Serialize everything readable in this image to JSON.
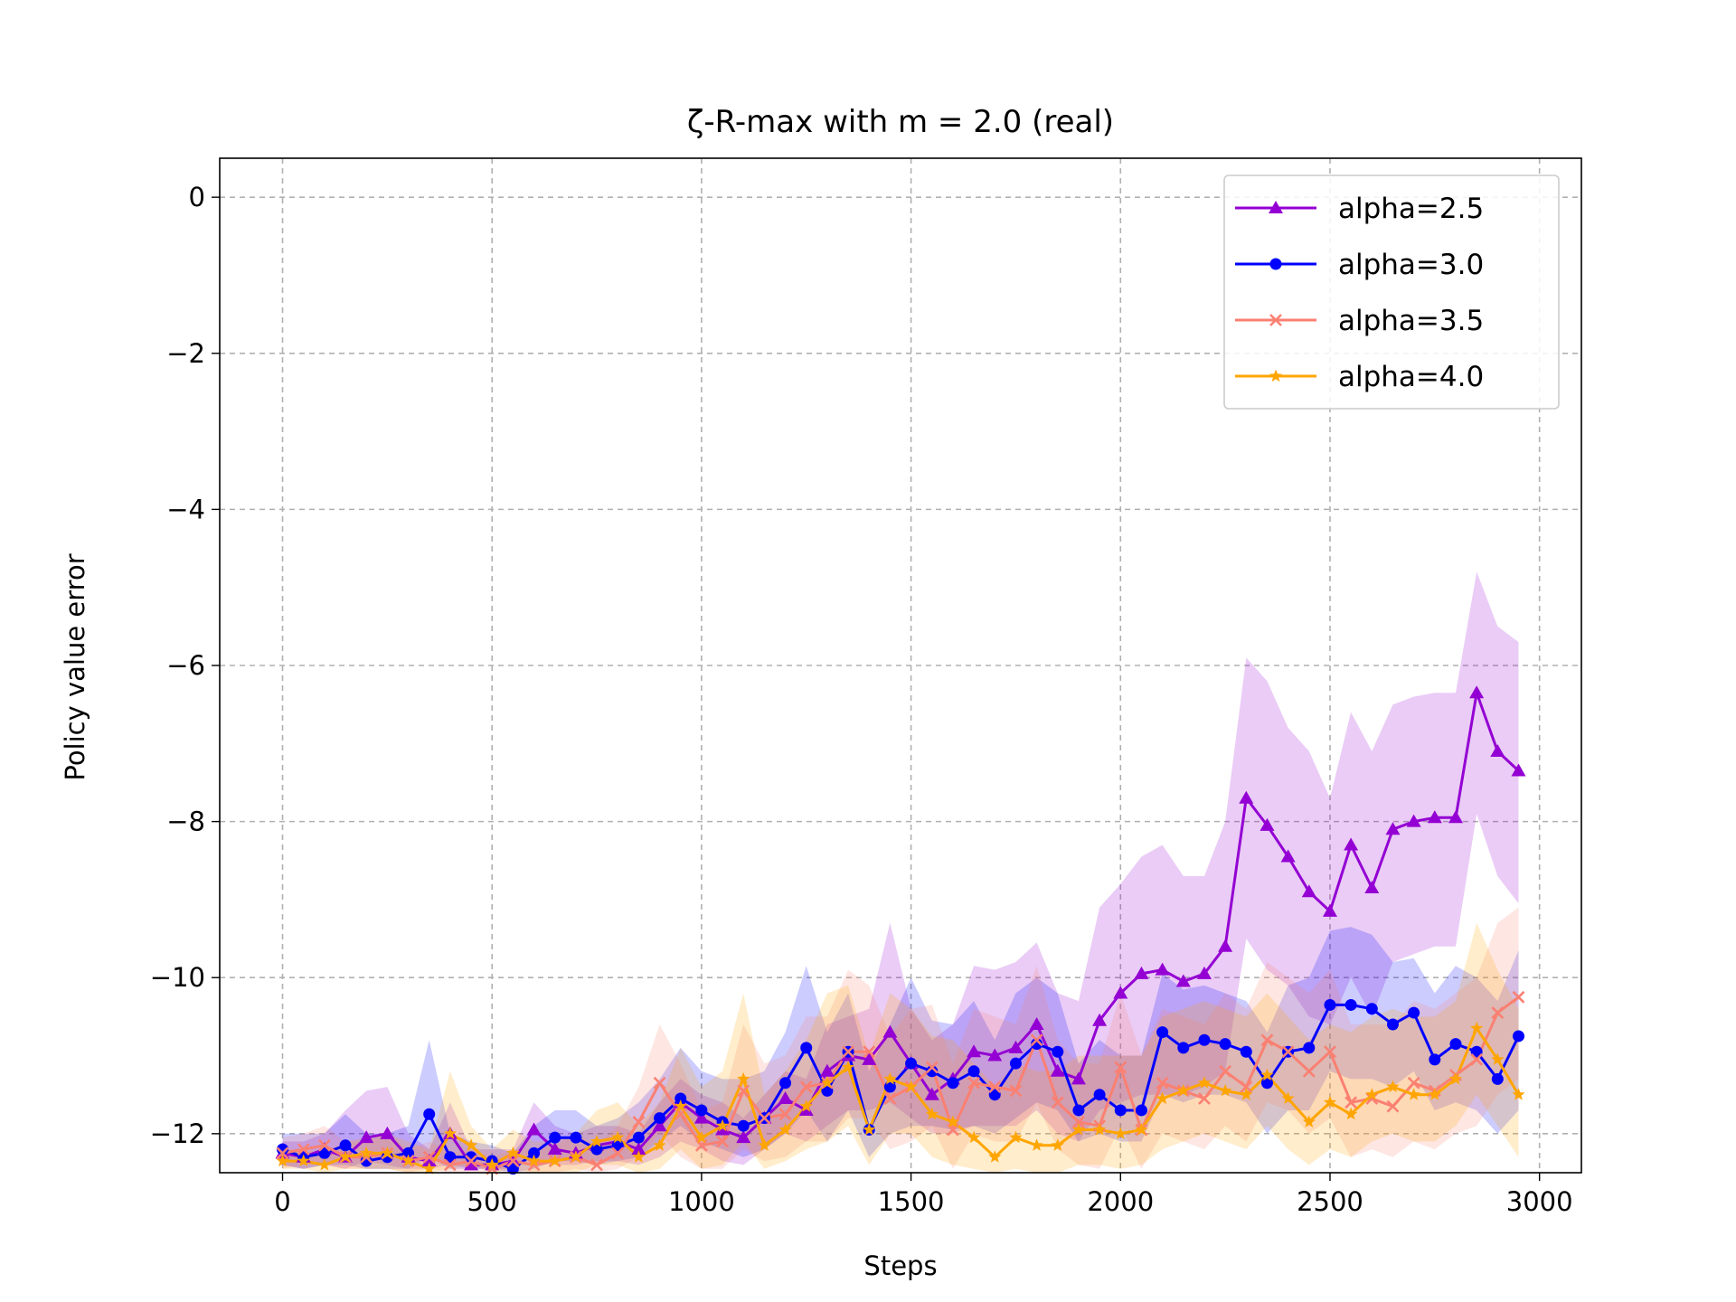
{
  "chart_data": {
    "type": "line",
    "title": "ζ-R-max with m = 2.0 (real)",
    "xlabel": "Steps",
    "ylabel": "Policy value error",
    "xlim": [
      -150,
      3100
    ],
    "ylim": [
      -12.5,
      0.5
    ],
    "xticks": [
      0,
      500,
      1000,
      1500,
      2000,
      2500,
      3000
    ],
    "xtick_labels": [
      "0",
      "500",
      "1000",
      "1500",
      "2000",
      "2500",
      "3000"
    ],
    "yticks": [
      0,
      -2,
      -4,
      -6,
      -8,
      -10,
      -12
    ],
    "ytick_labels": [
      "0",
      "−2",
      "−4",
      "−6",
      "−8",
      "−10",
      "−12"
    ],
    "grid": true,
    "legend_position": "top-right",
    "x": [
      0,
      50,
      100,
      150,
      200,
      250,
      300,
      350,
      400,
      450,
      500,
      550,
      600,
      650,
      700,
      750,
      800,
      850,
      900,
      950,
      1000,
      1050,
      1100,
      1150,
      1200,
      1250,
      1300,
      1350,
      1400,
      1450,
      1500,
      1550,
      1600,
      1650,
      1700,
      1750,
      1800,
      1850,
      1900,
      1950,
      2000,
      2050,
      2100,
      2150,
      2200,
      2250,
      2300,
      2350,
      2400,
      2450,
      2500,
      2550,
      2600,
      2650,
      2700,
      2750,
      2800,
      2850,
      2900,
      2950
    ],
    "series": [
      {
        "name": "alpha=2.5",
        "color": "#9400D3",
        "marker": "triangle",
        "values": [
          -12.25,
          -12.3,
          -12.2,
          -12.3,
          -12.05,
          -12.0,
          -12.3,
          -12.35,
          -12.0,
          -12.4,
          -12.4,
          -12.35,
          -11.95,
          -12.2,
          -12.25,
          -12.15,
          -12.1,
          -12.2,
          -11.9,
          -11.6,
          -11.8,
          -11.95,
          -12.05,
          -11.8,
          -11.55,
          -11.7,
          -11.2,
          -11.0,
          -11.05,
          -10.7,
          -11.1,
          -11.5,
          -11.3,
          -10.95,
          -11.0,
          -10.9,
          -10.6,
          -11.2,
          -11.3,
          -10.55,
          -10.2,
          -9.95,
          -9.9,
          -10.05,
          -9.95,
          -9.6,
          -7.7,
          -8.05,
          -8.45,
          -8.9,
          -9.15,
          -8.3,
          -8.85,
          -8.1,
          -8.0,
          -7.95,
          -7.95,
          -6.35,
          -7.1,
          -7.35
        ],
        "upper": [
          -12.1,
          -12.1,
          -12.0,
          -11.7,
          -11.45,
          -11.4,
          -12.0,
          -12.2,
          -11.6,
          -12.2,
          -12.2,
          -12.2,
          -11.6,
          -11.9,
          -12.0,
          -11.9,
          -11.9,
          -12.0,
          -11.6,
          -11.3,
          -11.5,
          -11.6,
          -11.8,
          -11.5,
          -11.2,
          -11.3,
          -10.6,
          -10.5,
          -10.4,
          -9.3,
          -10.4,
          -10.8,
          -10.6,
          -9.85,
          -9.9,
          -9.8,
          -9.55,
          -10.2,
          -10.3,
          -9.1,
          -8.8,
          -8.45,
          -8.3,
          -8.7,
          -8.7,
          -8.0,
          -5.9,
          -6.2,
          -6.8,
          -7.1,
          -7.7,
          -6.6,
          -7.1,
          -6.5,
          -6.4,
          -6.35,
          -6.35,
          -4.8,
          -5.5,
          -5.7
        ],
        "lower": [
          -12.4,
          -12.45,
          -12.4,
          -12.45,
          -12.35,
          -12.4,
          -12.45,
          -12.45,
          -12.4,
          -12.45,
          -12.45,
          -12.45,
          -12.3,
          -12.4,
          -12.4,
          -12.35,
          -12.35,
          -12.4,
          -12.3,
          -12.1,
          -12.2,
          -12.35,
          -12.4,
          -12.2,
          -12.0,
          -12.1,
          -11.9,
          -11.7,
          -11.7,
          -11.6,
          -11.8,
          -12.0,
          -12.0,
          -11.9,
          -11.9,
          -11.9,
          -11.7,
          -12.0,
          -12.1,
          -11.7,
          -11.6,
          -11.5,
          -11.5,
          -11.5,
          -11.4,
          -11.2,
          -9.5,
          -9.9,
          -10.1,
          -10.5,
          -10.6,
          -10.0,
          -10.5,
          -9.8,
          -9.7,
          -9.6,
          -9.6,
          -7.9,
          -8.7,
          -9.05
        ]
      },
      {
        "name": "alpha=3.0",
        "color": "#0000FF",
        "marker": "circle",
        "values": [
          -12.2,
          -12.3,
          -12.25,
          -12.15,
          -12.35,
          -12.3,
          -12.25,
          -11.75,
          -12.3,
          -12.3,
          -12.35,
          -12.45,
          -12.25,
          -12.05,
          -12.05,
          -12.2,
          -12.15,
          -12.05,
          -11.8,
          -11.55,
          -11.7,
          -11.85,
          -11.9,
          -11.8,
          -11.35,
          -10.9,
          -11.45,
          -10.95,
          -11.95,
          -11.4,
          -11.1,
          -11.2,
          -11.35,
          -11.2,
          -11.5,
          -11.1,
          -10.85,
          -10.95,
          -11.7,
          -11.5,
          -11.7,
          -11.7,
          -10.7,
          -10.9,
          -10.8,
          -10.85,
          -10.95,
          -11.35,
          -10.95,
          -10.9,
          -10.35,
          -10.35,
          -10.4,
          -10.6,
          -10.45,
          -11.05,
          -10.85,
          -10.95,
          -11.3,
          -10.75
        ],
        "upper": [
          -12.0,
          -12.0,
          -12.0,
          -11.75,
          -12.0,
          -12.0,
          -11.9,
          -10.8,
          -12.0,
          -12.1,
          -12.15,
          -12.25,
          -11.9,
          -11.7,
          -11.7,
          -11.9,
          -11.8,
          -11.6,
          -11.3,
          -10.9,
          -11.2,
          -11.3,
          -11.3,
          -11.2,
          -10.7,
          -9.85,
          -10.7,
          -10.2,
          -11.2,
          -10.6,
          -10.0,
          -10.55,
          -10.6,
          -10.3,
          -10.8,
          -10.2,
          -10.0,
          -10.2,
          -11.1,
          -10.8,
          -11.0,
          -11.0,
          -9.95,
          -10.15,
          -10.1,
          -10.2,
          -10.3,
          -10.7,
          -10.1,
          -10.0,
          -9.4,
          -9.35,
          -9.45,
          -9.8,
          -9.75,
          -10.2,
          -9.85,
          -10.0,
          -10.3,
          -9.65
        ],
        "lower": [
          -12.4,
          -12.45,
          -12.4,
          -12.4,
          -12.45,
          -12.45,
          -12.45,
          -12.3,
          -12.45,
          -12.45,
          -12.45,
          -12.5,
          -12.45,
          -12.35,
          -12.35,
          -12.4,
          -12.35,
          -12.3,
          -12.1,
          -11.9,
          -12.1,
          -12.2,
          -12.3,
          -12.2,
          -12.0,
          -11.7,
          -12.1,
          -11.7,
          -12.3,
          -12.0,
          -11.9,
          -11.9,
          -11.95,
          -11.9,
          -12.0,
          -11.8,
          -11.6,
          -11.7,
          -12.1,
          -12.0,
          -12.1,
          -12.1,
          -11.5,
          -11.6,
          -11.5,
          -11.5,
          -11.6,
          -12.0,
          -11.7,
          -11.7,
          -11.2,
          -11.3,
          -11.3,
          -11.4,
          -11.2,
          -11.7,
          -11.6,
          -11.7,
          -12.0,
          -11.7
        ]
      },
      {
        "name": "alpha=3.5",
        "color": "#FA8072",
        "marker": "x",
        "values": [
          -12.25,
          -12.2,
          -12.15,
          -12.3,
          -12.3,
          -12.25,
          -12.35,
          -12.3,
          -12.4,
          -12.35,
          -12.45,
          -12.35,
          -12.4,
          -12.35,
          -12.3,
          -12.4,
          -12.25,
          -11.85,
          -11.35,
          -11.75,
          -12.15,
          -12.1,
          -11.45,
          -11.8,
          -11.75,
          -11.4,
          -11.35,
          -10.95,
          -10.95,
          -11.55,
          -11.4,
          -11.15,
          -11.95,
          -11.35,
          -11.4,
          -11.45,
          -10.8,
          -11.6,
          -11.85,
          -11.9,
          -11.15,
          -11.95,
          -11.35,
          -11.45,
          -11.55,
          -11.2,
          -11.4,
          -10.8,
          -10.95,
          -11.2,
          -10.95,
          -11.6,
          -11.55,
          -11.65,
          -11.35,
          -11.45,
          -11.25,
          -11.05,
          -10.45,
          -10.25
        ],
        "upper": [
          -12.05,
          -12.0,
          -11.9,
          -12.1,
          -12.1,
          -12.0,
          -12.2,
          -12.1,
          -12.25,
          -12.2,
          -12.3,
          -12.2,
          -12.2,
          -12.15,
          -12.0,
          -12.15,
          -11.9,
          -11.4,
          -10.6,
          -11.1,
          -11.7,
          -11.6,
          -10.6,
          -11.1,
          -11.0,
          -10.5,
          -10.5,
          -9.9,
          -10.1,
          -10.75,
          -10.4,
          -10.35,
          -11.1,
          -10.4,
          -10.5,
          -10.6,
          -9.85,
          -10.8,
          -11.1,
          -11.1,
          -10.2,
          -11.0,
          -10.4,
          -10.5,
          -10.6,
          -10.2,
          -10.4,
          -9.8,
          -10.0,
          -10.2,
          -9.9,
          -10.6,
          -10.6,
          -10.6,
          -10.3,
          -10.4,
          -10.2,
          -10.0,
          -9.3,
          -9.1
        ],
        "lower": [
          -12.45,
          -12.4,
          -12.4,
          -12.45,
          -12.45,
          -12.45,
          -12.5,
          -12.45,
          -12.5,
          -12.5,
          -12.5,
          -12.5,
          -12.5,
          -12.5,
          -12.45,
          -12.5,
          -12.45,
          -12.3,
          -12.0,
          -12.3,
          -12.45,
          -12.45,
          -12.2,
          -12.35,
          -12.3,
          -12.1,
          -12.1,
          -11.8,
          -11.8,
          -12.2,
          -12.1,
          -11.9,
          -12.45,
          -12.0,
          -12.1,
          -12.1,
          -11.6,
          -12.2,
          -12.4,
          -12.45,
          -11.9,
          -12.45,
          -12.0,
          -12.1,
          -12.2,
          -11.9,
          -12.1,
          -11.6,
          -11.7,
          -12.0,
          -11.8,
          -12.3,
          -12.2,
          -12.3,
          -12.1,
          -12.2,
          -12.0,
          -11.9,
          -11.5,
          -11.3
        ]
      },
      {
        "name": "alpha=4.0",
        "color": "#FFA500",
        "marker": "star",
        "values": [
          -12.35,
          -12.35,
          -12.4,
          -12.3,
          -12.25,
          -12.25,
          -12.35,
          -12.45,
          -12.0,
          -12.15,
          -12.4,
          -12.25,
          -12.35,
          -12.35,
          -12.3,
          -12.1,
          -12.05,
          -12.3,
          -12.15,
          -11.65,
          -12.05,
          -11.9,
          -11.3,
          -12.15,
          -11.95,
          -11.65,
          -11.35,
          -11.15,
          -11.95,
          -11.3,
          -11.4,
          -11.75,
          -11.85,
          -12.05,
          -12.3,
          -12.05,
          -12.15,
          -12.15,
          -11.95,
          -11.95,
          -12.0,
          -11.95,
          -11.55,
          -11.45,
          -11.35,
          -11.45,
          -11.5,
          -11.25,
          -11.55,
          -11.85,
          -11.6,
          -11.75,
          -11.5,
          -11.4,
          -11.5,
          -11.5,
          -11.3,
          -10.65,
          -11.05,
          -11.5
        ],
        "upper": [
          -12.2,
          -12.2,
          -12.25,
          -12.1,
          -12.05,
          -12.0,
          -12.1,
          -12.2,
          -11.2,
          -11.9,
          -12.2,
          -11.95,
          -12.1,
          -12.1,
          -12.0,
          -11.7,
          -11.6,
          -11.9,
          -11.6,
          -10.9,
          -11.4,
          -11.2,
          -10.2,
          -11.5,
          -11.2,
          -10.8,
          -10.2,
          -10.1,
          -11.0,
          -10.2,
          -10.4,
          -10.75,
          -10.8,
          -11.1,
          -11.4,
          -11.1,
          -11.2,
          -11.2,
          -11.0,
          -11.0,
          -11.0,
          -11.0,
          -10.5,
          -10.4,
          -10.3,
          -10.4,
          -10.5,
          -10.2,
          -10.5,
          -10.8,
          -10.6,
          -10.7,
          -10.5,
          -10.4,
          -10.5,
          -10.5,
          -10.3,
          -9.3,
          -9.9,
          -10.4
        ],
        "lower": [
          -12.45,
          -12.45,
          -12.5,
          -12.45,
          -12.45,
          -12.45,
          -12.5,
          -12.5,
          -12.45,
          -12.4,
          -12.5,
          -12.45,
          -12.5,
          -12.5,
          -12.5,
          -12.4,
          -12.4,
          -12.5,
          -12.45,
          -12.2,
          -12.45,
          -12.4,
          -12.1,
          -12.45,
          -12.35,
          -12.2,
          -12.1,
          -11.9,
          -12.4,
          -12.0,
          -12.0,
          -12.3,
          -12.4,
          -12.45,
          -12.5,
          -12.45,
          -12.5,
          -12.5,
          -12.4,
          -12.4,
          -12.45,
          -12.4,
          -12.2,
          -12.1,
          -12.0,
          -12.1,
          -12.2,
          -11.9,
          -12.2,
          -12.4,
          -12.2,
          -12.3,
          -12.1,
          -12.0,
          -12.1,
          -12.1,
          -11.9,
          -11.5,
          -11.9,
          -12.3
        ]
      }
    ]
  }
}
